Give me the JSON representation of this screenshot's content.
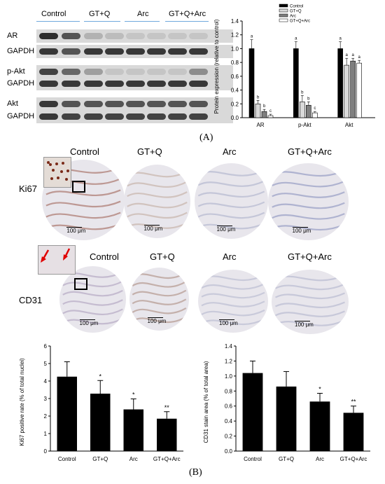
{
  "panel_a": {
    "letter": "(A)",
    "groups": [
      "Control",
      "GT+Q",
      "Arc",
      "GT+Q+Arc"
    ],
    "blots": [
      {
        "label": "AR",
        "bands": [
          0.9,
          0.7,
          0.2,
          0.15,
          0.1,
          0.1,
          0.1,
          0.1
        ]
      },
      {
        "label": "GAPDH",
        "bands": [
          0.85,
          0.7,
          0.85,
          0.85,
          0.85,
          0.85,
          0.85,
          0.85
        ]
      },
      {
        "label": "p-Akt",
        "bands": [
          0.8,
          0.6,
          0.3,
          0.1,
          0.1,
          0.1,
          0.1,
          0.4
        ]
      },
      {
        "label": "GAPDH",
        "bands": [
          0.85,
          0.85,
          0.85,
          0.85,
          0.85,
          0.85,
          0.85,
          0.85
        ]
      },
      {
        "label": "Akt",
        "bands": [
          0.85,
          0.7,
          0.7,
          0.7,
          0.7,
          0.7,
          0.7,
          0.7
        ]
      },
      {
        "label": "GAPDH",
        "bands": [
          0.85,
          0.8,
          0.8,
          0.8,
          0.8,
          0.8,
          0.8,
          0.8
        ]
      }
    ]
  },
  "panel_b": {
    "letter": "(B)",
    "columns": [
      "Control",
      "GT+Q",
      "Arc",
      "GT+Q+Arc"
    ],
    "rows": [
      "Ki67",
      "CD31"
    ],
    "scale_bar": "100 μm"
  },
  "chart_data": [
    {
      "type": "bar",
      "ylabel": "Protein expression (relative to control)",
      "categories": [
        "AR",
        "p-Akt",
        "Akt"
      ],
      "ylim": [
        0,
        1.4
      ],
      "yticks": [
        "0.0",
        "0.2",
        "0.4",
        "0.6",
        "0.8",
        "1.0",
        "1.2",
        "1.4"
      ],
      "legend": "top-right",
      "series": [
        {
          "name": "Control",
          "color": "#000000",
          "values": [
            1.0,
            1.0,
            1.0
          ],
          "errors": [
            0.13,
            0.1,
            0.1
          ],
          "letters": [
            "a",
            "a",
            "a"
          ]
        },
        {
          "name": "GT+Q",
          "color": "#d9d9d9",
          "values": [
            0.2,
            0.23,
            0.76
          ],
          "errors": [
            0.05,
            0.09,
            0.1
          ],
          "letters": [
            "b",
            "b",
            "a"
          ]
        },
        {
          "name": "Arc",
          "color": "#7f7f7f",
          "values": [
            0.09,
            0.18,
            0.82
          ],
          "errors": [
            0.03,
            0.05,
            0.04
          ],
          "letters": [
            "b",
            "b",
            "a"
          ]
        },
        {
          "name": "GT+Q+Arc",
          "color": "#ffffff",
          "values": [
            0.03,
            0.07,
            0.79
          ],
          "errors": [
            0.02,
            0.02,
            0.04
          ],
          "letters": [
            "c",
            "c",
            "a"
          ]
        }
      ]
    },
    {
      "type": "bar",
      "ylabel": "Ki67 positive rate (% of total nuclei)",
      "categories": [
        "Control",
        "GT+Q",
        "Arc",
        "GT+Q+Arc"
      ],
      "ylim": [
        0,
        6
      ],
      "yticks": [
        "0",
        "1",
        "2",
        "3",
        "4",
        "5",
        "6"
      ],
      "values": [
        4.25,
        3.28,
        2.38,
        1.85
      ],
      "errors": [
        0.85,
        0.75,
        0.6,
        0.4
      ],
      "annotations": [
        "",
        "*",
        "*",
        "**"
      ]
    },
    {
      "type": "bar",
      "ylabel": "CD31 stain area (% of total area)",
      "categories": [
        "Control",
        "GT+Q",
        "Arc",
        "GT+Q+Arc"
      ],
      "ylim": [
        0,
        1.4
      ],
      "yticks": [
        "0.0",
        "0.2",
        "0.4",
        "0.6",
        "0.8",
        "1.0",
        "1.2",
        "1.4"
      ],
      "values": [
        1.04,
        0.86,
        0.66,
        0.51
      ],
      "errors": [
        0.16,
        0.2,
        0.11,
        0.09
      ],
      "annotations": [
        "",
        "",
        "*",
        "**"
      ]
    }
  ]
}
